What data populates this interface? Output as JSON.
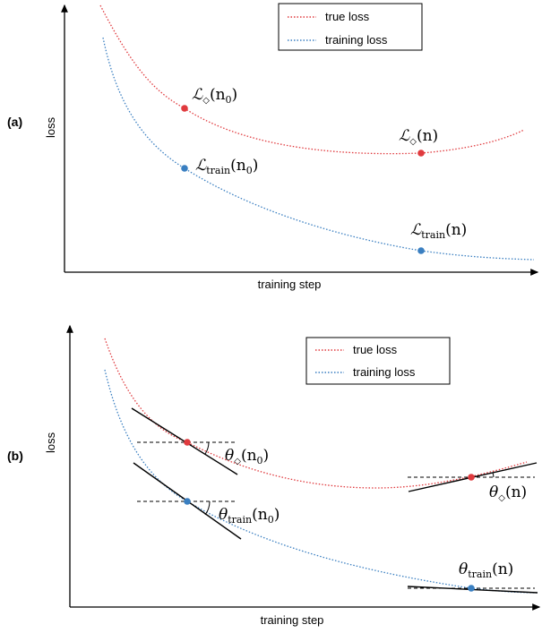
{
  "colors": {
    "true_loss": "#e03a3e",
    "training_loss": "#3a7fc1",
    "axis": "#000000"
  },
  "legend": {
    "true_loss": "true loss",
    "training_loss": "training loss"
  },
  "panel_a": {
    "tag": "(a)",
    "ylabel": "loss",
    "xlabel": "training step",
    "labels": {
      "true_n0": {
        "sym": "ℒ",
        "sub": "◇",
        "arg": "(n",
        "argsub": "0",
        "close": ")"
      },
      "true_n": {
        "sym": "ℒ",
        "sub": "◇",
        "arg": "(n)"
      },
      "train_n0": {
        "sym": "ℒ",
        "sub": "train",
        "arg": "(n",
        "argsub": "0",
        "close": ")"
      },
      "train_n": {
        "sym": "ℒ",
        "sub": "train",
        "arg": "(n)"
      }
    }
  },
  "panel_b": {
    "tag": "(b)",
    "ylabel": "loss",
    "xlabel": "training step",
    "labels": {
      "theta_true_n0": {
        "sym": "θ",
        "sub": "◇",
        "arg": "(n",
        "argsub": "0",
        "close": ")"
      },
      "theta_true_n": {
        "sym": "θ",
        "sub": "◇",
        "arg": "(n)"
      },
      "theta_train_n0": {
        "sym": "θ",
        "sub": "train",
        "arg": "(n",
        "argsub": "0",
        "close": ")"
      },
      "theta_train_n": {
        "sym": "θ",
        "sub": "train",
        "arg": "(n)"
      }
    }
  }
}
